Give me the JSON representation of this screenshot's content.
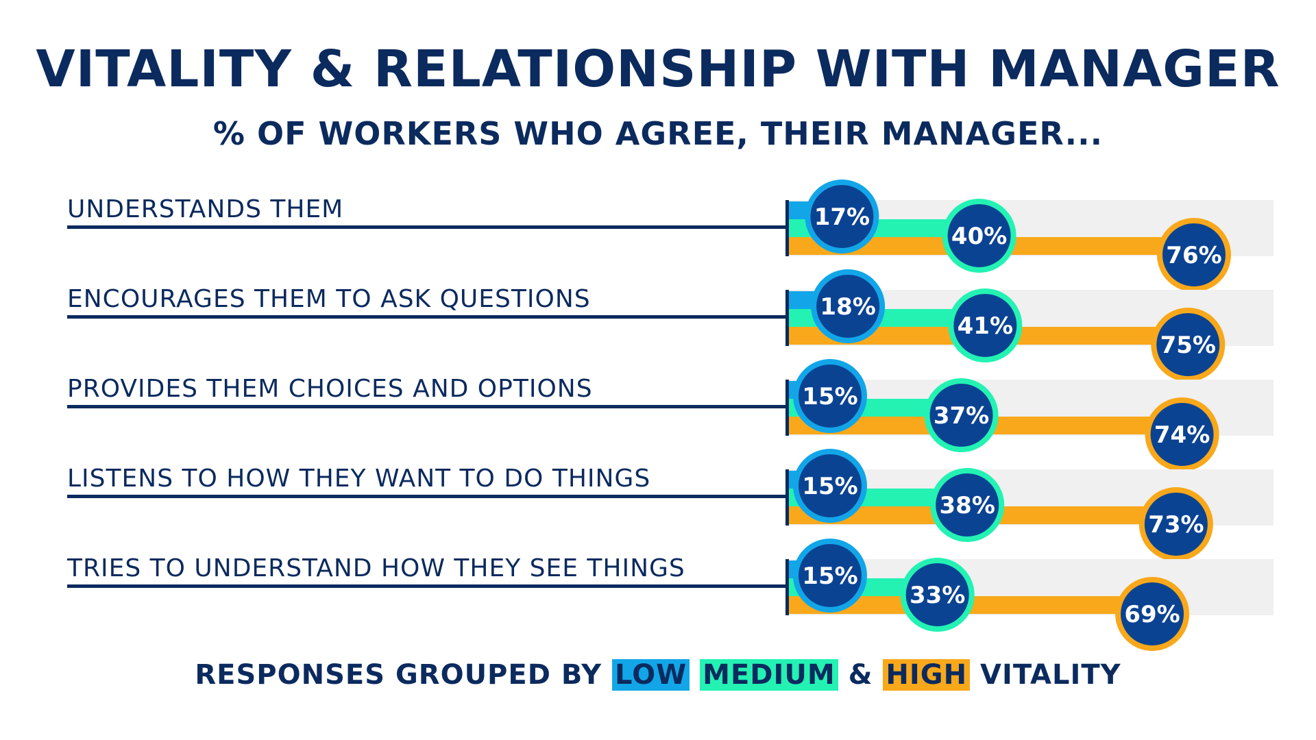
{
  "title": "VITALITY & RELATIONSHIP WITH MANAGER",
  "subtitle": "% OF WORKERS WHO AGREE, THEIR MANAGER...",
  "legend": {
    "prefix": "RESPONSES GROUPED BY",
    "low": "LOW",
    "medium": "MEDIUM",
    "and": "&",
    "high": "HIGH",
    "suffix": "VITALITY"
  },
  "colors": {
    "navy": "#0b2a5e",
    "low": "#12a6e8",
    "medium": "#23f2b3",
    "high": "#f8a81a",
    "track": "#f0f0f0",
    "circle_fill": "#0b4393"
  },
  "chart_data": {
    "type": "bar",
    "title": "VITALITY & RELATIONSHIP WITH MANAGER",
    "subtitle": "% OF WORKERS WHO AGREE, THEIR MANAGER...",
    "categories": [
      "UNDERSTANDS THEM",
      "ENCOURAGES THEM TO ASK QUESTIONS",
      "PROVIDES THEM CHOICES AND OPTIONS",
      "LISTENS TO HOW THEY WANT TO DO THINGS",
      "TRIES TO UNDERSTAND HOW THEY SEE THINGS"
    ],
    "series": [
      {
        "name": "LOW",
        "values": [
          17,
          18,
          15,
          15,
          15
        ],
        "labels": [
          "17%",
          "18%",
          "15%",
          "15%",
          "15%"
        ]
      },
      {
        "name": "MEDIUM",
        "values": [
          40,
          41,
          37,
          38,
          33
        ],
        "labels": [
          "40%",
          "41%",
          "37%",
          "38%",
          "33%"
        ]
      },
      {
        "name": "HIGH",
        "values": [
          76,
          75,
          74,
          73,
          69
        ],
        "labels": [
          "76%",
          "75%",
          "74%",
          "73%",
          "69%"
        ]
      }
    ],
    "xlim": [
      0,
      100
    ],
    "legend_position": "bottom"
  }
}
